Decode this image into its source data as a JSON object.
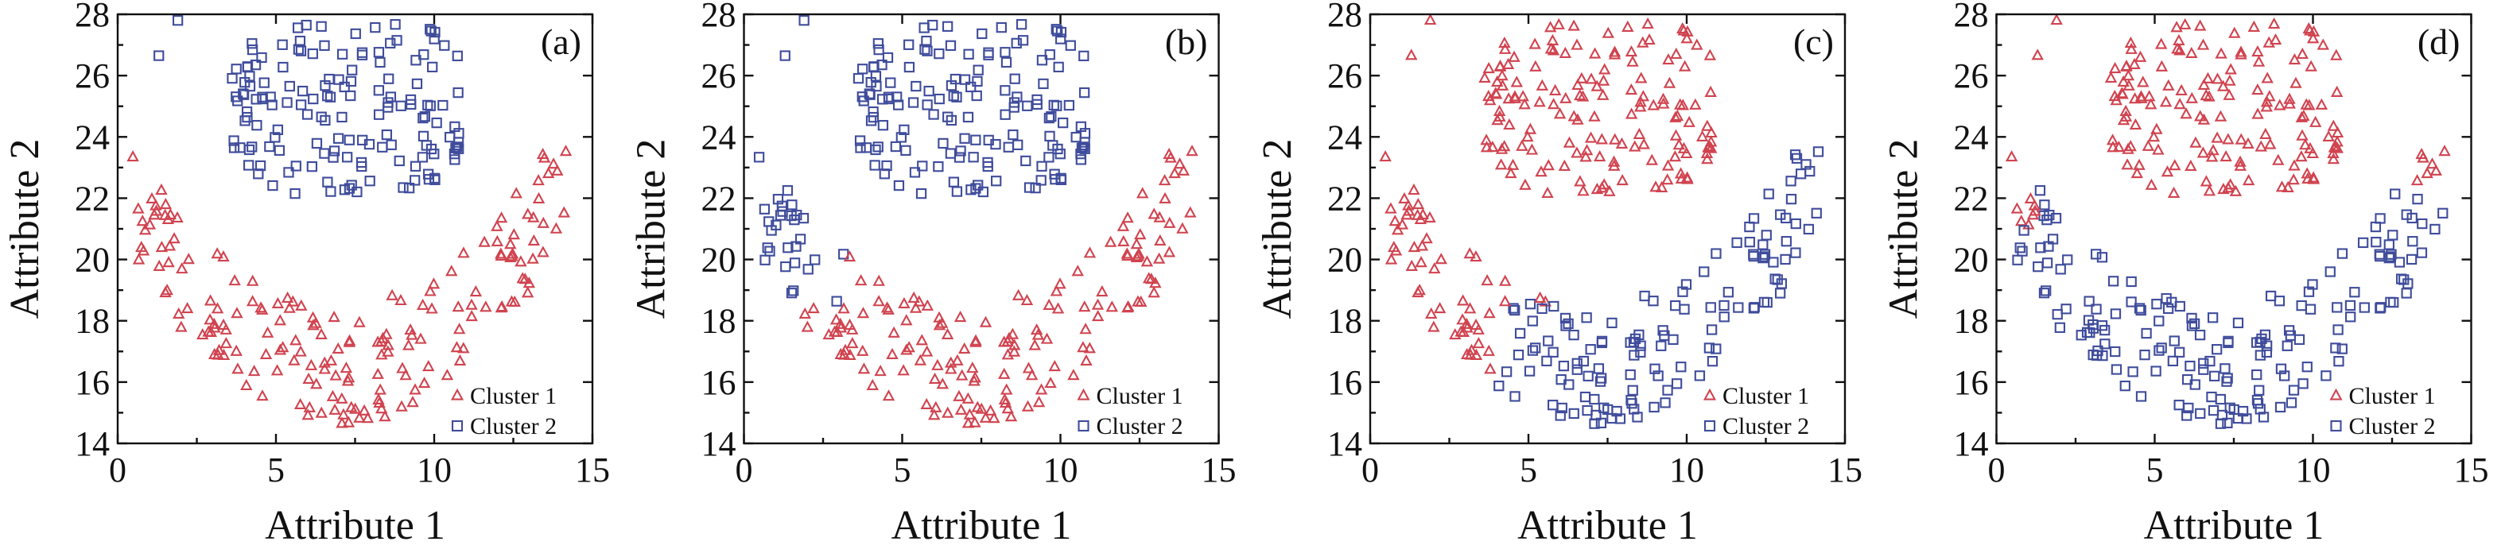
{
  "colors": {
    "cluster1": "#d0434f",
    "cluster2": "#3f4c9b",
    "axis": "#111111"
  },
  "legend_placement": "bottom-right",
  "chart_data": [
    {
      "type": "scatter",
      "panel_label": "(a)",
      "xlabel": "Attribute 1",
      "ylabel": "Attribute 2",
      "xlim": [
        0,
        15
      ],
      "ylim": [
        14,
        28
      ],
      "xticks": [
        0,
        5,
        10,
        15
      ],
      "yticks": [
        14,
        16,
        18,
        20,
        22,
        24,
        26,
        28
      ],
      "grid": false,
      "legend": [
        "Cluster 1",
        "Cluster 2"
      ],
      "series_markers": [
        "triangle",
        "square"
      ],
      "split": "a"
    },
    {
      "type": "scatter",
      "panel_label": "(b)",
      "xlabel": "Attribute 1",
      "ylabel": "Attribute 2",
      "xlim": [
        0,
        15
      ],
      "ylim": [
        14,
        28
      ],
      "xticks": [
        0,
        5,
        10,
        15
      ],
      "yticks": [
        14,
        16,
        18,
        20,
        22,
        24,
        26,
        28
      ],
      "grid": false,
      "legend": [
        "Cluster 1",
        "Cluster 2"
      ],
      "series_markers": [
        "triangle",
        "square"
      ],
      "split": "b"
    },
    {
      "type": "scatter",
      "panel_label": "(c)",
      "xlabel": "Attribute 1",
      "ylabel": "Attribute 2",
      "xlim": [
        0,
        15
      ],
      "ylim": [
        14,
        28
      ],
      "xticks": [
        0,
        5,
        10,
        15
      ],
      "yticks": [
        14,
        16,
        18,
        20,
        22,
        24,
        26,
        28
      ],
      "grid": false,
      "legend": [
        "Cluster 1",
        "Cluster 2"
      ],
      "series_markers": [
        "triangle",
        "square"
      ],
      "split": "c"
    },
    {
      "type": "scatter",
      "panel_label": "(d)",
      "xlabel": "Attribute 1",
      "ylabel": "Attribute 2",
      "xlim": [
        0,
        15
      ],
      "ylim": [
        14,
        28
      ],
      "xticks": [
        0,
        5,
        10,
        15
      ],
      "yticks": [
        14,
        16,
        18,
        20,
        22,
        24,
        26,
        28
      ],
      "grid": false,
      "legend": [
        "Cluster 1",
        "Cluster 2"
      ],
      "series_markers": [
        "triangle",
        "square"
      ],
      "split": "d"
    }
  ]
}
